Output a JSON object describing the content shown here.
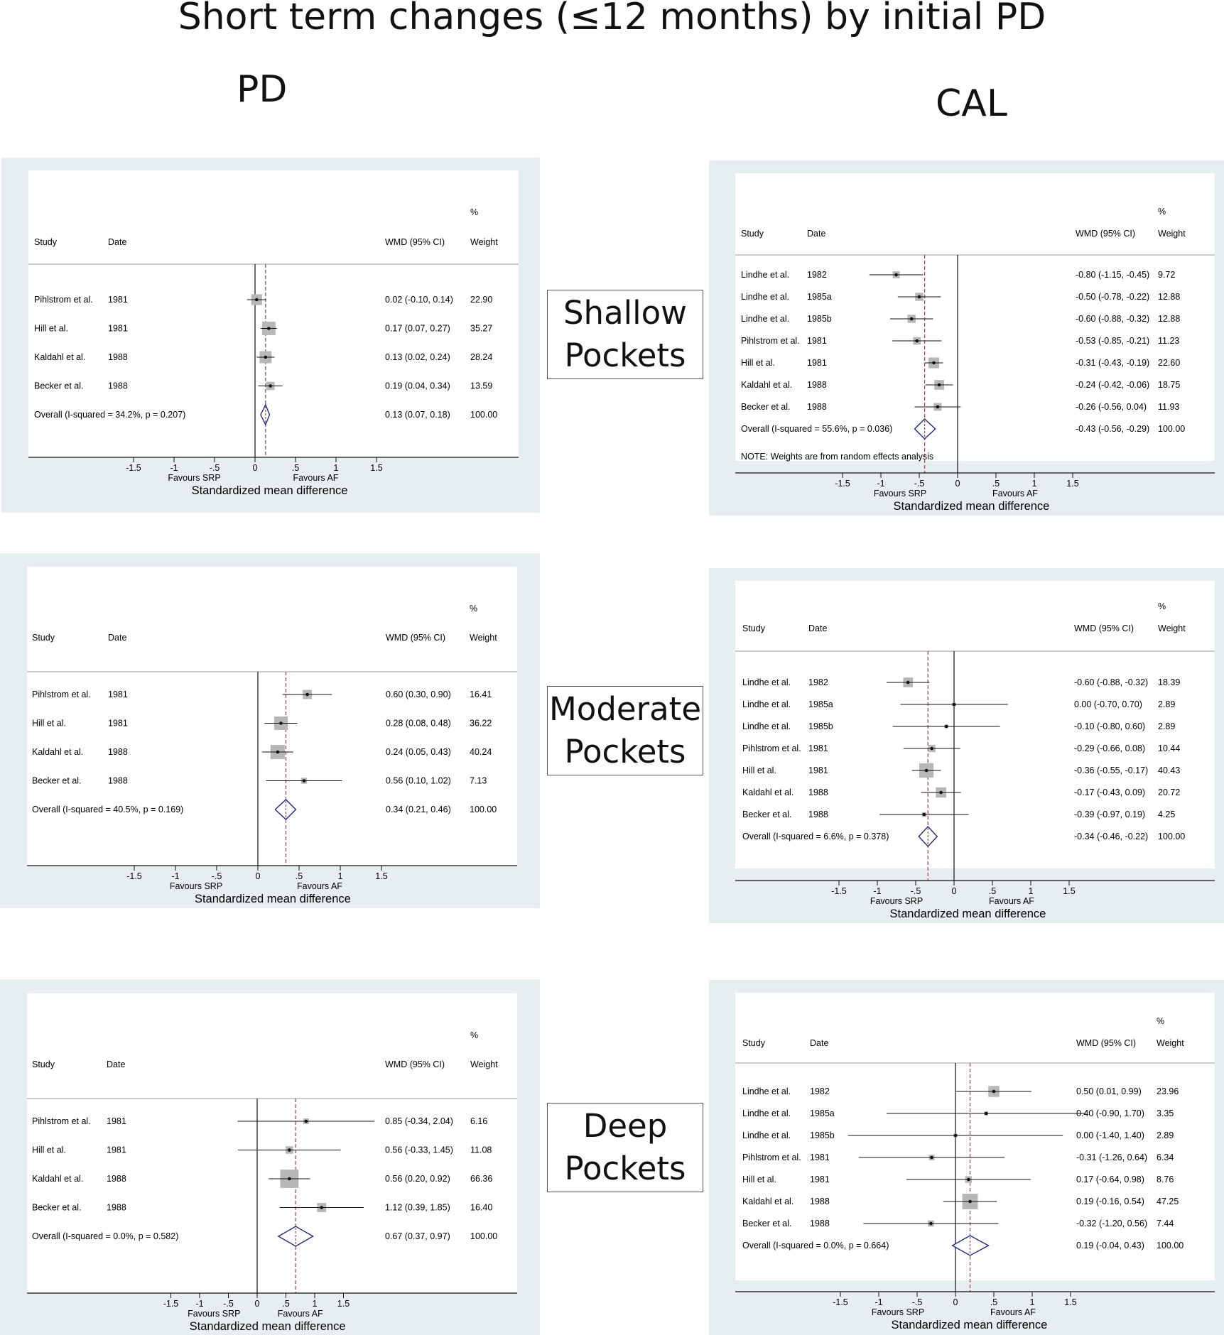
{
  "title": "Short term changes (≤12 months) by initial PD",
  "col_titles": {
    "left": "PD",
    "right": "CAL"
  },
  "row_labels": [
    {
      "line1": "Shallow",
      "line2": "Pockets"
    },
    {
      "line1": "Moderate",
      "line2": "Pockets"
    },
    {
      "line1": "Deep",
      "line2": "Pockets"
    }
  ],
  "colors": {
    "panel_bg": "#e6eeef",
    "plot_bg": "#ffffff",
    "weight_box": "#b7b7b7",
    "diamond": "#1f2a7a",
    "pooled_line": "#b0474f"
  },
  "chart_data": [
    {
      "type": "forest",
      "panel": "PD-Shallow",
      "header": {
        "study": "Study",
        "date": "Date",
        "effect": "WMD (95% CI)",
        "pct": "%",
        "weight": "Weight"
      },
      "xlabel": "Standardized mean difference",
      "favours_left": "Favours SRP",
      "favours_right": "Favours AF",
      "xticks": [
        -1.5,
        -1,
        -0.5,
        0,
        0.5,
        1,
        1.5
      ],
      "xtick_labels": [
        "-1.5",
        "-1",
        "-.5",
        "0",
        ".5",
        "1",
        "1.5"
      ],
      "xlim": [
        -1.8,
        1.8
      ],
      "note": "",
      "studies": [
        {
          "study": "Pihlstrom et al.",
          "date": "1981",
          "est": 0.02,
          "lo": -0.1,
          "hi": 0.14,
          "ci_text": "0.02 (-0.10, 0.14)",
          "weight": 22.9,
          "weight_text": "22.90"
        },
        {
          "study": "Hill et al.",
          "date": "1981",
          "est": 0.17,
          "lo": 0.07,
          "hi": 0.27,
          "ci_text": "0.17 (0.07, 0.27)",
          "weight": 35.27,
          "weight_text": "35.27"
        },
        {
          "study": "Kaldahl et al.",
          "date": "1988",
          "est": 0.13,
          "lo": 0.02,
          "hi": 0.24,
          "ci_text": "0.13 (0.02, 0.24)",
          "weight": 28.24,
          "weight_text": "28.24"
        },
        {
          "study": "Becker et al.",
          "date": "1988",
          "est": 0.19,
          "lo": 0.04,
          "hi": 0.34,
          "ci_text": "0.19 (0.04, 0.34)",
          "weight": 13.59,
          "weight_text": "13.59"
        }
      ],
      "overall": {
        "label": "Overall  (I-squared = 34.2%, p = 0.207)",
        "est": 0.13,
        "lo": 0.07,
        "hi": 0.18,
        "ci_text": "0.13 (0.07, 0.18)",
        "weight_text": "100.00"
      }
    },
    {
      "type": "forest",
      "panel": "CAL-Shallow",
      "header": {
        "study": "Study",
        "date": "Date",
        "effect": "WMD (95% CI)",
        "pct": "%",
        "weight": "Weight"
      },
      "xlabel": "Standardized mean difference",
      "favours_left": "Favours SRP",
      "favours_right": "Favours AF",
      "xticks": [
        -1.5,
        -1,
        -0.5,
        0,
        0.5,
        1,
        1.5
      ],
      "xtick_labels": [
        "-1.5",
        "-1",
        "-.5",
        "0",
        ".5",
        "1",
        "1.5"
      ],
      "xlim": [
        -1.8,
        1.8
      ],
      "note": "NOTE: Weights are from random effects analysis",
      "studies": [
        {
          "study": "Lindhe et al.",
          "date": "1982",
          "est": -0.8,
          "lo": -1.15,
          "hi": -0.45,
          "ci_text": "-0.80 (-1.15, -0.45)",
          "weight": 9.72,
          "weight_text": "9.72"
        },
        {
          "study": "Lindhe et al.",
          "date": "1985a",
          "est": -0.5,
          "lo": -0.78,
          "hi": -0.22,
          "ci_text": "-0.50 (-0.78, -0.22)",
          "weight": 12.88,
          "weight_text": "12.88"
        },
        {
          "study": "Lindhe et al.",
          "date": "1985b",
          "est": -0.6,
          "lo": -0.88,
          "hi": -0.32,
          "ci_text": "-0.60 (-0.88, -0.32)",
          "weight": 12.88,
          "weight_text": "12.88"
        },
        {
          "study": "Pihlstrom et al.",
          "date": "1981",
          "est": -0.53,
          "lo": -0.85,
          "hi": -0.21,
          "ci_text": "-0.53 (-0.85, -0.21)",
          "weight": 11.23,
          "weight_text": "11.23"
        },
        {
          "study": "Hill et al.",
          "date": "1981",
          "est": -0.31,
          "lo": -0.43,
          "hi": -0.19,
          "ci_text": "-0.31 (-0.43, -0.19)",
          "weight": 22.6,
          "weight_text": "22.60"
        },
        {
          "study": "Kaldahl et al.",
          "date": "1988",
          "est": -0.24,
          "lo": -0.42,
          "hi": -0.06,
          "ci_text": "-0.24 (-0.42, -0.06)",
          "weight": 18.75,
          "weight_text": "18.75"
        },
        {
          "study": "Becker et al.",
          "date": "1988",
          "est": -0.26,
          "lo": -0.56,
          "hi": 0.04,
          "ci_text": "-0.26 (-0.56, 0.04)",
          "weight": 11.93,
          "weight_text": "11.93"
        }
      ],
      "overall": {
        "label": "Overall  (I-squared = 55.6%, p = 0.036)",
        "est": -0.43,
        "lo": -0.56,
        "hi": -0.29,
        "ci_text": "-0.43 (-0.56, -0.29)",
        "weight_text": "100.00"
      }
    },
    {
      "type": "forest",
      "panel": "PD-Moderate",
      "header": {
        "study": "Study",
        "date": "Date",
        "effect": "WMD (95% CI)",
        "pct": "%",
        "weight": "Weight"
      },
      "xlabel": "Standardized mean difference",
      "favours_left": "Favours SRP",
      "favours_right": "Favours AF",
      "xticks": [
        -1.5,
        -1,
        -0.5,
        0,
        0.5,
        1,
        1.5
      ],
      "xtick_labels": [
        "-1.5",
        "-1",
        "-.5",
        "0",
        ".5",
        "1",
        "1.5"
      ],
      "xlim": [
        -1.8,
        1.8
      ],
      "note": "",
      "studies": [
        {
          "study": "Pihlstrom et al.",
          "date": "1981",
          "est": 0.6,
          "lo": 0.3,
          "hi": 0.9,
          "ci_text": "0.60 (0.30, 0.90)",
          "weight": 16.41,
          "weight_text": "16.41"
        },
        {
          "study": "Hill et al.",
          "date": "1981",
          "est": 0.28,
          "lo": 0.08,
          "hi": 0.48,
          "ci_text": "0.28 (0.08, 0.48)",
          "weight": 36.22,
          "weight_text": "36.22"
        },
        {
          "study": "Kaldahl et al.",
          "date": "1988",
          "est": 0.24,
          "lo": 0.05,
          "hi": 0.43,
          "ci_text": "0.24 (0.05, 0.43)",
          "weight": 40.24,
          "weight_text": "40.24"
        },
        {
          "study": "Becker et al.",
          "date": "1988",
          "est": 0.56,
          "lo": 0.1,
          "hi": 1.02,
          "ci_text": "0.56 (0.10, 1.02)",
          "weight": 7.13,
          "weight_text": "7.13"
        }
      ],
      "overall": {
        "label": "Overall  (I-squared = 40.5%, p = 0.169)",
        "est": 0.34,
        "lo": 0.21,
        "hi": 0.46,
        "ci_text": "0.34 (0.21, 0.46)",
        "weight_text": "100.00"
      }
    },
    {
      "type": "forest",
      "panel": "CAL-Moderate",
      "header": {
        "study": "Study",
        "date": "Date",
        "effect": "WMD (95% CI)",
        "pct": "%",
        "weight": "Weight"
      },
      "xlabel": "Standardized mean difference",
      "favours_left": "Favours SRP",
      "favours_right": "Favours AF",
      "xticks": [
        -1.5,
        -1,
        -0.5,
        0,
        0.5,
        1,
        1.5
      ],
      "xtick_labels": [
        "-1.5",
        "-1",
        "-.5",
        "0",
        ".5",
        "1",
        "1.5"
      ],
      "xlim": [
        -1.8,
        1.8
      ],
      "note": "",
      "studies": [
        {
          "study": "Lindhe et al.",
          "date": "1982",
          "est": -0.6,
          "lo": -0.88,
          "hi": -0.32,
          "ci_text": "-0.60 (-0.88, -0.32)",
          "weight": 18.39,
          "weight_text": "18.39"
        },
        {
          "study": "Lindhe et al.",
          "date": "1985a",
          "est": 0.0,
          "lo": -0.7,
          "hi": 0.7,
          "ci_text": "0.00 (-0.70, 0.70)",
          "weight": 2.89,
          "weight_text": "2.89"
        },
        {
          "study": "Lindhe et al.",
          "date": "1985b",
          "est": -0.1,
          "lo": -0.8,
          "hi": 0.6,
          "ci_text": "-0.10 (-0.80, 0.60)",
          "weight": 2.89,
          "weight_text": "2.89"
        },
        {
          "study": "Pihlstrom et al.",
          "date": "1981",
          "est": -0.29,
          "lo": -0.66,
          "hi": 0.08,
          "ci_text": "-0.29 (-0.66, 0.08)",
          "weight": 10.44,
          "weight_text": "10.44"
        },
        {
          "study": "Hill et al.",
          "date": "1981",
          "est": -0.36,
          "lo": -0.55,
          "hi": -0.17,
          "ci_text": "-0.36 (-0.55, -0.17)",
          "weight": 40.43,
          "weight_text": "40.43"
        },
        {
          "study": "Kaldahl et al.",
          "date": "1988",
          "est": -0.17,
          "lo": -0.43,
          "hi": 0.09,
          "ci_text": "-0.17 (-0.43, 0.09)",
          "weight": 20.72,
          "weight_text": "20.72"
        },
        {
          "study": "Becker et al.",
          "date": "1988",
          "est": -0.39,
          "lo": -0.97,
          "hi": 0.19,
          "ci_text": "-0.39 (-0.97, 0.19)",
          "weight": 4.25,
          "weight_text": "4.25"
        }
      ],
      "overall": {
        "label": "Overall  (I-squared = 6.6%, p = 0.378)",
        "est": -0.34,
        "lo": -0.46,
        "hi": -0.22,
        "ci_text": "-0.34 (-0.46, -0.22)",
        "weight_text": "100.00"
      }
    },
    {
      "type": "forest",
      "panel": "PD-Deep",
      "header": {
        "study": "Study",
        "date": "Date",
        "effect": "WMD (95% CI)",
        "pct": "%",
        "weight": "Weight"
      },
      "xlabel": "Standardized mean difference",
      "favours_left": "Favours SRP",
      "favours_right": "Favours AF",
      "xticks": [
        -1.5,
        -1,
        -0.5,
        0,
        0.5,
        1,
        1.5
      ],
      "xtick_labels": [
        "-1.5",
        "-1",
        "-.5",
        "0",
        ".5",
        "1",
        "1.5"
      ],
      "xlim": [
        -2.5,
        2.5
      ],
      "note": "",
      "studies": [
        {
          "study": "Pihlstrom et al.",
          "date": "1981",
          "est": 0.85,
          "lo": -0.34,
          "hi": 2.04,
          "ci_text": "0.85 (-0.34, 2.04)",
          "weight": 6.16,
          "weight_text": "6.16"
        },
        {
          "study": "Hill et al.",
          "date": "1981",
          "est": 0.56,
          "lo": -0.33,
          "hi": 1.45,
          "ci_text": "0.56 (-0.33, 1.45)",
          "weight": 11.08,
          "weight_text": "11.08"
        },
        {
          "study": "Kaldahl et al.",
          "date": "1988",
          "est": 0.56,
          "lo": 0.2,
          "hi": 0.92,
          "ci_text": "0.56 (0.20, 0.92)",
          "weight": 66.36,
          "weight_text": "66.36"
        },
        {
          "study": "Becker et al.",
          "date": "1988",
          "est": 1.12,
          "lo": 0.39,
          "hi": 1.85,
          "ci_text": "1.12 (0.39, 1.85)",
          "weight": 16.4,
          "weight_text": "16.40"
        }
      ],
      "overall": {
        "label": "Overall  (I-squared = 0.0%, p = 0.582)",
        "est": 0.67,
        "lo": 0.37,
        "hi": 0.97,
        "ci_text": "0.67 (0.37, 0.97)",
        "weight_text": "100.00"
      }
    },
    {
      "type": "forest",
      "panel": "CAL-Deep",
      "header": {
        "study": "Study",
        "date": "Date",
        "effect": "WMD (95% CI)",
        "pct": "%",
        "weight": "Weight"
      },
      "xlabel": "Standardized mean difference",
      "favours_left": "Favours SRP",
      "favours_right": "Favours AF",
      "xticks": [
        -1.5,
        -1,
        -0.5,
        0,
        0.5,
        1,
        1.5
      ],
      "xtick_labels": [
        "-1.5",
        "-1",
        "-.5",
        "0",
        ".5",
        "1",
        "1.5"
      ],
      "xlim": [
        -1.8,
        1.8
      ],
      "note": "",
      "studies": [
        {
          "study": "Lindhe et al.",
          "date": "1982",
          "est": 0.5,
          "lo": 0.01,
          "hi": 0.99,
          "ci_text": "0.50 (0.01, 0.99)",
          "weight": 23.96,
          "weight_text": "23.96"
        },
        {
          "study": "Lindhe et al.",
          "date": "1985a",
          "est": 0.4,
          "lo": -0.9,
          "hi": 1.7,
          "ci_text": "0.40 (-0.90, 1.70)",
          "weight": 3.35,
          "weight_text": "3.35"
        },
        {
          "study": "Lindhe et al.",
          "date": "1985b",
          "est": 0.0,
          "lo": -1.4,
          "hi": 1.4,
          "ci_text": "0.00 (-1.40, 1.40)",
          "weight": 2.89,
          "weight_text": "2.89"
        },
        {
          "study": "Pihlstrom et al.",
          "date": "1981",
          "est": -0.31,
          "lo": -1.26,
          "hi": 0.64,
          "ci_text": "-0.31 (-1.26, 0.64)",
          "weight": 6.34,
          "weight_text": "6.34"
        },
        {
          "study": "Hill et al.",
          "date": "1981",
          "est": 0.17,
          "lo": -0.64,
          "hi": 0.98,
          "ci_text": "0.17 (-0.64, 0.98)",
          "weight": 8.76,
          "weight_text": "8.76"
        },
        {
          "study": "Kaldahl et al.",
          "date": "1988",
          "est": 0.19,
          "lo": -0.16,
          "hi": 0.54,
          "ci_text": "0.19 (-0.16, 0.54)",
          "weight": 47.25,
          "weight_text": "47.25"
        },
        {
          "study": "Becker et al.",
          "date": "1988",
          "est": -0.32,
          "lo": -1.2,
          "hi": 0.56,
          "ci_text": "-0.32 (-1.20, 0.56)",
          "weight": 7.44,
          "weight_text": "7.44"
        }
      ],
      "overall": {
        "label": "Overall  (I-squared = 0.0%, p = 0.664)",
        "est": 0.19,
        "lo": -0.04,
        "hi": 0.43,
        "ci_text": "0.19 (-0.04, 0.43)",
        "weight_text": "100.00"
      }
    }
  ]
}
